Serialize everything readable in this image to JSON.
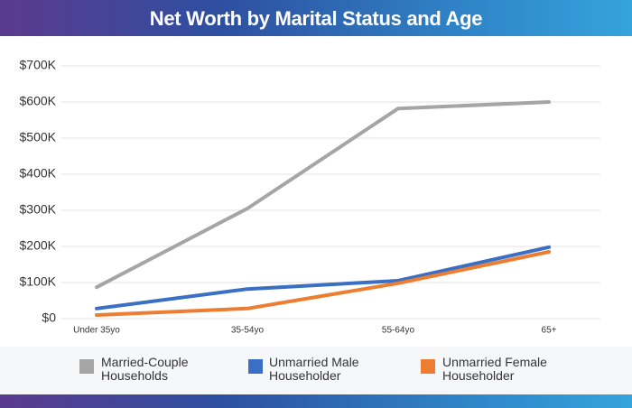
{
  "chart_data": {
    "type": "line",
    "title": "Net Worth by Marital Status and Age",
    "categories": [
      "Under 35yo",
      "35-54yo",
      "55-64yo",
      "65+"
    ],
    "series": [
      {
        "name": "Married-Couple Households",
        "color": "#a5a5a5",
        "values": [
          87000,
          305000,
          582000,
          600000
        ]
      },
      {
        "name": "Unmarried Male Householder",
        "color": "#3a6fc4",
        "values": [
          28000,
          82000,
          105000,
          198000
        ]
      },
      {
        "name": "Unmarried Female Householder",
        "color": "#ed7d31",
        "values": [
          10000,
          28000,
          98000,
          185000
        ]
      }
    ],
    "ylim": [
      0,
      700000
    ],
    "yticks": [
      {
        "value": 0,
        "label": "$0"
      },
      {
        "value": 100000,
        "label": "$100K"
      },
      {
        "value": 200000,
        "label": "$200K"
      },
      {
        "value": 300000,
        "label": "$300K"
      },
      {
        "value": 400000,
        "label": "$400K"
      },
      {
        "value": 500000,
        "label": "$500K"
      },
      {
        "value": 600000,
        "label": "$600K"
      },
      {
        "value": 700000,
        "label": "$700K"
      }
    ],
    "grid": true
  }
}
